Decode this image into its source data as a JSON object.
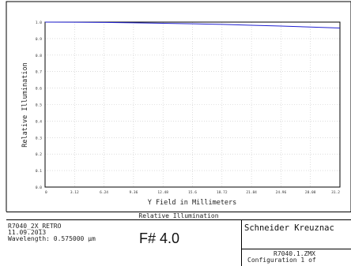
{
  "chart_data": {
    "type": "line",
    "title": "Relative Illumination",
    "xlabel": "Y Field in Millimeters",
    "ylabel": "Relative Illumination",
    "xlim": [
      0,
      31.2
    ],
    "ylim": [
      0.0,
      1.0
    ],
    "x_ticks": [
      "0",
      "3.12",
      "6.24",
      "9.36",
      "12.48",
      "15.6",
      "18.72",
      "21.84",
      "24.96",
      "28.08",
      "31.2"
    ],
    "y_ticks": [
      "0.0",
      "0.1",
      "0.2",
      "0.3",
      "0.4",
      "0.5",
      "0.6",
      "0.7",
      "0.8",
      "0.9",
      "1.0"
    ],
    "grid": true,
    "series": [
      {
        "color": "#1f1fd0",
        "x": [
          0,
          3.12,
          6.24,
          9.36,
          12.48,
          15.6,
          18.72,
          21.84,
          24.96,
          28.08,
          31.2
        ],
        "y": [
          1.0,
          0.9995,
          0.998,
          0.996,
          0.993,
          0.99,
          0.986,
          0.981,
          0.976,
          0.97,
          0.964
        ]
      }
    ]
  },
  "footer": {
    "caption": "Relative Illumination",
    "lens_name": "R7040_2X_RETRO",
    "date": "11.09.2013",
    "wavelength": "Wavelength: 0.575000 µm",
    "f_number": "F# 4.0",
    "company": "Schneider Kreuznac",
    "file": "R7040.1.ZMX",
    "configuration": "Configuration 1 of"
  }
}
